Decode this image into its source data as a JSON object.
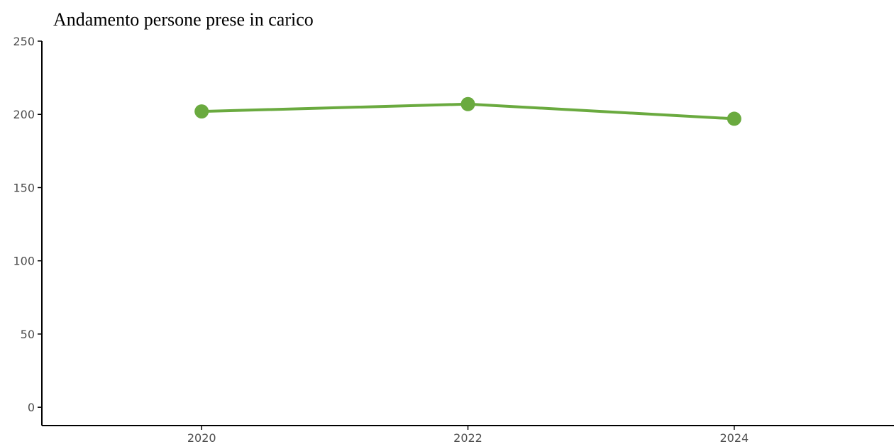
{
  "chart_data": {
    "type": "line",
    "title": "Andamento persone prese in carico",
    "xlabel": "",
    "ylabel": "",
    "x": [
      2020,
      2022,
      2024
    ],
    "series": [
      {
        "values": [
          202,
          207,
          197
        ]
      }
    ],
    "xlim": [
      2018.8,
      2025.2
    ],
    "ylim": [
      -12.5,
      250
    ],
    "xticks": [
      "2020",
      "2022",
      "2024"
    ],
    "yticks": [
      "0",
      "50",
      "100",
      "150",
      "200",
      "250"
    ],
    "grid": false,
    "legend": "none",
    "colors": {
      "series": "#6aaa3f",
      "axis": "#000000",
      "tick_text": "#4d4d4d"
    }
  }
}
